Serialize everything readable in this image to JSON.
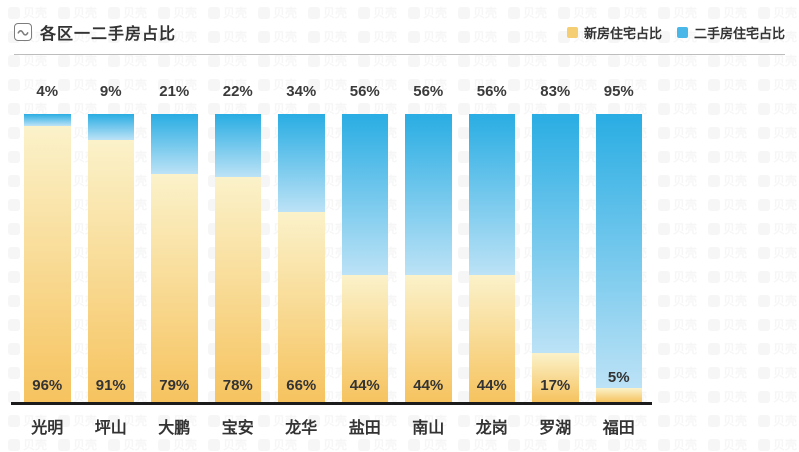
{
  "header": {
    "title": "各区一二手房占比",
    "icon": "trend-wave-icon"
  },
  "legend": [
    {
      "label": "新房住宅占比",
      "color": "#F5CE74"
    },
    {
      "label": "二手房住宅占比",
      "color": "#49B7E8"
    }
  ],
  "watermark": {
    "text": "贝壳"
  },
  "chart_data": {
    "type": "bar",
    "stacked": true,
    "orientation": "vertical",
    "unit": "%",
    "title": "各区一二手房占比",
    "categories": [
      "光明",
      "坪山",
      "大鹏",
      "宝安",
      "龙华",
      "盐田",
      "南山",
      "龙岗",
      "罗湖",
      "福田"
    ],
    "series": [
      {
        "name": "新房住宅占比",
        "position": "bottom",
        "values": [
          96,
          91,
          79,
          78,
          66,
          44,
          44,
          44,
          17,
          5
        ],
        "gradient": [
          "#FBF2CA",
          "#F6C35F"
        ]
      },
      {
        "name": "二手房住宅占比",
        "position": "top",
        "values": [
          4,
          9,
          21,
          22,
          34,
          56,
          56,
          56,
          83,
          95
        ],
        "gradient": [
          "#29ADE3",
          "#BCE2F6"
        ]
      }
    ],
    "value_labels": {
      "top": [
        "4%",
        "9%",
        "21%",
        "22%",
        "34%",
        "56%",
        "56%",
        "56%",
        "83%",
        "95%"
      ],
      "bottom": [
        "96%",
        "91%",
        "79%",
        "78%",
        "66%",
        "44%",
        "44%",
        "44%",
        "17%",
        "5%"
      ]
    },
    "ylim": [
      0,
      100
    ],
    "grid": false,
    "legend_position": "top-right"
  }
}
